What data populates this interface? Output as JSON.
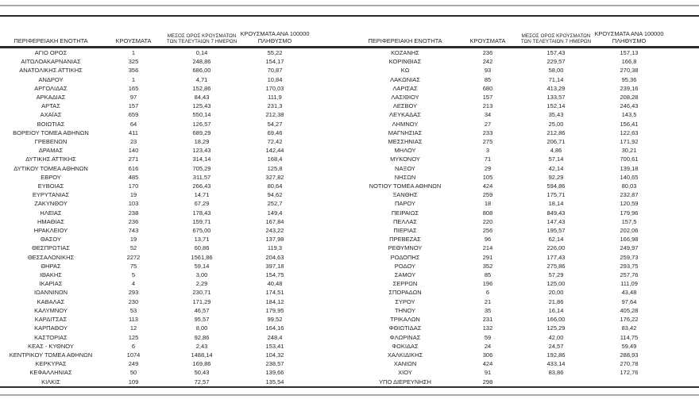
{
  "page": {
    "background": "#ffffff",
    "text_color": "#1f1f1f",
    "rule_dark": "#2b2b2b",
    "rule_gray": "#a8a8a8"
  },
  "header": {
    "region": "ΠΕΡΙΦΕΡΕΙΑΚΗ ΕΝΟΤΗΤΑ",
    "cases": "ΚΡΟΥΣΜΑΤΑ",
    "avg7": [
      "ΜΕΣΟΣ ΟΡΟΣ ΚΡΟΥΣΜΑΤΩΝ",
      "ΤΩΝ ΤΕΛΕΥΤΑΙΩΝ 7 ΗΜΕΡΩΝ"
    ],
    "per100k": [
      "ΚΡΟΥΣΜΑΤΑ ΑΝΑ 100000",
      "ΠΛΗΘΥΣΜΟ"
    ]
  },
  "tables": {
    "left": {
      "rows": [
        [
          "ΑΓΙΟ ΟΡΟΣ",
          "1",
          "0,14",
          "55,22"
        ],
        [
          "ΑΙΤΩΛΟΑΚΑΡΝΑΝΙΑΣ",
          "325",
          "248,86",
          "154,17"
        ],
        [
          "ΑΝΑΤΟΛΙΚΗΣ ΑΤΤΙΚΗΣ",
          "356",
          "686,00",
          "70,87"
        ],
        [
          "ΑΝΔΡΟΥ",
          "1",
          "4,71",
          "10,84"
        ],
        [
          "ΑΡΓΟΛΙΔΑΣ",
          "165",
          "152,86",
          "170,03"
        ],
        [
          "ΑΡΚΑΔΙΑΣ",
          "97",
          "84,43",
          "111,9"
        ],
        [
          "ΑΡΤΑΣ",
          "157",
          "125,43",
          "231,3"
        ],
        [
          "ΑΧΑΪΑΣ",
          "659",
          "550,14",
          "212,38"
        ],
        [
          "ΒΟΙΩΤΙΑΣ",
          "64",
          "126,57",
          "54,27"
        ],
        [
          "ΒΟΡΕΙΟΥ ΤΟΜΕΑ ΑΘΗΝΩΝ",
          "411",
          "689,29",
          "69,46"
        ],
        [
          "ΓΡΕΒΕΝΩΝ",
          "23",
          "18,29",
          "72,42"
        ],
        [
          "ΔΡΑΜΑΣ",
          "140",
          "123,43",
          "142,44"
        ],
        [
          "ΔΥΤΙΚΗΣ ΑΤΤΙΚΗΣ",
          "271",
          "314,14",
          "168,4"
        ],
        [
          "ΔΥΤΙΚΟΥ ΤΟΜΕΑ ΑΘΗΝΩΝ",
          "616",
          "705,29",
          "125,8"
        ],
        [
          "ΕΒΡΟΥ",
          "485",
          "311,57",
          "327,82"
        ],
        [
          "ΕΥΒΟΙΑΣ",
          "170",
          "266,43",
          "80,64"
        ],
        [
          "ΕΥΡΥΤΑΝΙΑΣ",
          "19",
          "14,71",
          "94,62"
        ],
        [
          "ΖΑΚΥΝΘΟΥ",
          "103",
          "67,29",
          "252,7"
        ],
        [
          "ΗΛΕΙΑΣ",
          "238",
          "178,43",
          "149,4"
        ],
        [
          "ΗΜΑΘΙΑΣ",
          "236",
          "159,71",
          "167,84"
        ],
        [
          "ΗΡΑΚΛΕΙΟΥ",
          "743",
          "675,00",
          "243,22"
        ],
        [
          "ΘΑΣΟΥ",
          "19",
          "13,71",
          "137,98"
        ],
        [
          "ΘΕΣΠΡΩΤΙΑΣ",
          "52",
          "60,86",
          "119,3"
        ],
        [
          "ΘΕΣΣΑΛΟΝΙΚΗΣ",
          "2272",
          "1561,86",
          "204,63"
        ],
        [
          "ΘΗΡΑΣ",
          "75",
          "59,14",
          "397,18"
        ],
        [
          "ΙΘΑΚΗΣ",
          "5",
          "3,00",
          "154,75"
        ],
        [
          "ΙΚΑΡΙΑΣ",
          "4",
          "2,29",
          "40,48"
        ],
        [
          "ΙΩΑΝΝΙΝΩΝ",
          "293",
          "230,71",
          "174,51"
        ],
        [
          "ΚΑΒΑΛΑΣ",
          "230",
          "171,29",
          "184,12"
        ],
        [
          "ΚΑΛΥΜΝΟΥ",
          "53",
          "46,57",
          "179,95"
        ],
        [
          "ΚΑΡΔΙΤΣΑΣ",
          "113",
          "95,57",
          "99,52"
        ],
        [
          "ΚΑΡΠΑΘΟΥ",
          "12",
          "8,00",
          "164,16"
        ],
        [
          "ΚΑΣΤΟΡΙΑΣ",
          "125",
          "92,86",
          "248,4"
        ],
        [
          "ΚΕΑΣ - ΚΥΘΝΟΥ",
          "6",
          "2,43",
          "153,41"
        ],
        [
          "ΚΕΝΤΡΙΚΟΥ ΤΟΜΕΑ ΑΘΗΝΩΝ",
          "1074",
          "1488,14",
          "104,32"
        ],
        [
          "ΚΕΡΚΥΡΑΣ",
          "249",
          "169,86",
          "238,57"
        ],
        [
          "ΚΕΦΑΛΛΗΝΙΑΣ",
          "50",
          "50,43",
          "139,66"
        ],
        [
          "ΚΙΛΚΙΣ",
          "109",
          "72,57",
          "135,54"
        ]
      ]
    },
    "right": {
      "rows": [
        [
          "ΚΟΖΑΝΗΣ",
          "236",
          "157,43",
          "157,13"
        ],
        [
          "ΚΟΡΙΝΘΙΑΣ",
          "242",
          "229,57",
          "166,8"
        ],
        [
          "ΚΩ",
          "93",
          "58,00",
          "270,38"
        ],
        [
          "ΛΑΚΩΝΙΑΣ",
          "85",
          "71,14",
          "95,36"
        ],
        [
          "ΛΑΡΙΣΑΣ",
          "680",
          "413,29",
          "239,16"
        ],
        [
          "ΛΑΣΙΘΙΟΥ",
          "157",
          "133,57",
          "208,28"
        ],
        [
          "ΛΕΣΒΟΥ",
          "213",
          "152,14",
          "246,43"
        ],
        [
          "ΛΕΥΚΑΔΑΣ",
          "34",
          "35,43",
          "143,5"
        ],
        [
          "ΛΗΜΝΟΥ",
          "27",
          "25,00",
          "156,41"
        ],
        [
          "ΜΑΓΝΗΣΙΑΣ",
          "233",
          "212,86",
          "122,63"
        ],
        [
          "ΜΕΣΣΗΝΙΑΣ",
          "275",
          "206,71",
          "171,92"
        ],
        [
          "ΜΗΛΟΥ",
          "3",
          "4,86",
          "30,21"
        ],
        [
          "ΜΥΚΟΝΟΥ",
          "71",
          "57,14",
          "700,61"
        ],
        [
          "ΝΑΞΟΥ",
          "29",
          "42,14",
          "139,18"
        ],
        [
          "ΝΗΣΩΝ",
          "105",
          "92,29",
          "140,65"
        ],
        [
          "ΝΟΤΙΟΥ ΤΟΜΕΑ ΑΘΗΝΩΝ",
          "424",
          "594,86",
          "80,03"
        ],
        [
          "ΞΑΝΘΗΣ",
          "259",
          "175,71",
          "232,87"
        ],
        [
          "ΠΑΡΟΥ",
          "18",
          "18,14",
          "120,59"
        ],
        [
          "ΠΕΙΡΑΙΩΣ",
          "808",
          "849,43",
          "179,96"
        ],
        [
          "ΠΕΛΛΑΣ",
          "220",
          "147,43",
          "157,5"
        ],
        [
          "ΠΙΕΡΙΑΣ",
          "256",
          "195,57",
          "202,06"
        ],
        [
          "ΠΡΕΒΕΖΑΣ",
          "96",
          "62,14",
          "166,98"
        ],
        [
          "ΡΕΘΥΜΝΟΥ",
          "214",
          "226,00",
          "249,97"
        ],
        [
          "ΡΟΔΟΠΗΣ",
          "291",
          "177,43",
          "259,73"
        ],
        [
          "ΡΟΔΟΥ",
          "352",
          "275,86",
          "293,75"
        ],
        [
          "ΣΑΜΟΥ",
          "85",
          "57,29",
          "257,76"
        ],
        [
          "ΣΕΡΡΩΝ",
          "196",
          "125,00",
          "111,09"
        ],
        [
          "ΣΠΟΡΑΔΩΝ",
          "6",
          "20,00",
          "43,48"
        ],
        [
          "ΣΥΡΟΥ",
          "21",
          "21,86",
          "97,64"
        ],
        [
          "ΤΗΝΟΥ",
          "35",
          "16,14",
          "405,28"
        ],
        [
          "ΤΡΙΚΑΛΩΝ",
          "231",
          "166,00",
          "176,22"
        ],
        [
          "ΦΘΙΩΤΙΔΑΣ",
          "132",
          "125,29",
          "83,42"
        ],
        [
          "ΦΛΩΡΙΝΑΣ",
          "59",
          "42,00",
          "114,75"
        ],
        [
          "ΦΩΚΙΔΑΣ",
          "24",
          "24,57",
          "59,49"
        ],
        [
          "ΧΑΛΚΙΔΙΚΗΣ",
          "306",
          "192,86",
          "288,93"
        ],
        [
          "ΧΑΝΙΩΝ",
          "424",
          "433,14",
          "270,78"
        ],
        [
          "ΧΙΟΥ",
          "91",
          "83,86",
          "172,76"
        ],
        [
          "ΥΠΟ ΔΙΕΡΕΥΝΗΣΗ",
          "298",
          "",
          ""
        ]
      ]
    }
  }
}
